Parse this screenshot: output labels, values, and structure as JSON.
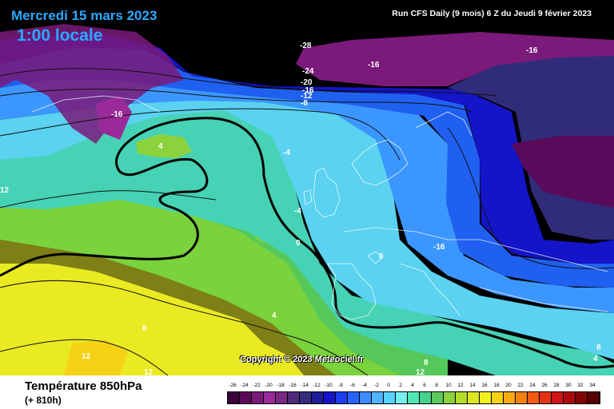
{
  "header": {
    "date": "Mercredi 15 mars 2023",
    "time": "1:00 locale",
    "run": "Run CFS Daily (9 mois) 6 Z du Jeudi 9 février 2023"
  },
  "map": {
    "copyright": "Copyright © 2023 Meteociel.fr",
    "contour_labels": [
      {
        "text": "-28",
        "color": "white"
      },
      {
        "text": "-24",
        "color": "white"
      },
      {
        "text": "-20",
        "color": "white"
      },
      {
        "text": "-16",
        "color": "white"
      },
      {
        "text": "-12",
        "color": "white"
      },
      {
        "text": "-8",
        "color": "white"
      },
      {
        "text": "-16",
        "color": "white"
      },
      {
        "text": "-16",
        "color": "white"
      },
      {
        "text": "-16",
        "color": "white"
      },
      {
        "text": "-16",
        "color": "white"
      },
      {
        "text": "4",
        "color": "white"
      },
      {
        "text": "-4",
        "color": "white"
      },
      {
        "text": "-4",
        "color": "white"
      },
      {
        "text": "0",
        "color": "white"
      },
      {
        "text": "0",
        "color": "white"
      },
      {
        "text": "12",
        "color": "white"
      },
      {
        "text": "4",
        "color": "white"
      },
      {
        "text": "8",
        "color": "white"
      },
      {
        "text": "12",
        "color": "white"
      },
      {
        "text": "12",
        "color": "white"
      },
      {
        "text": "8",
        "color": "white"
      },
      {
        "text": "12",
        "color": "white"
      },
      {
        "text": "4",
        "color": "white"
      },
      {
        "text": "8",
        "color": "white"
      }
    ]
  },
  "footer": {
    "variable": "Température 850hPa",
    "subtitle": "(+ 810h)"
  },
  "legend": {
    "ticks": [
      "-26",
      "-24",
      "-22",
      "-20",
      "-18",
      "-16",
      "-14",
      "-12",
      "-10",
      "-8",
      "-6",
      "-4",
      "-2",
      "0",
      "2",
      "4",
      "6",
      "8",
      "10",
      "12",
      "14",
      "16",
      "18",
      "20",
      "22",
      "24",
      "26",
      "28",
      "30",
      "32",
      "34"
    ],
    "colors": [
      "#3c003c",
      "#5a0a5a",
      "#7a1a7a",
      "#9a2a9a",
      "#7a2a82",
      "#502c78",
      "#342c80",
      "#1e1e96",
      "#1414c8",
      "#1e3cf0",
      "#2864ff",
      "#3c8cff",
      "#50b4ff",
      "#5ad2ff",
      "#78f0f0",
      "#50e6b4",
      "#46d28c",
      "#5ac85a",
      "#8cd23c",
      "#b4dc28",
      "#dce61e",
      "#f0f01e",
      "#f5d214",
      "#f5aa14",
      "#f08214",
      "#f05a14",
      "#e63214",
      "#d21414",
      "#aa0a0a",
      "#820505",
      "#5a0000"
    ]
  }
}
